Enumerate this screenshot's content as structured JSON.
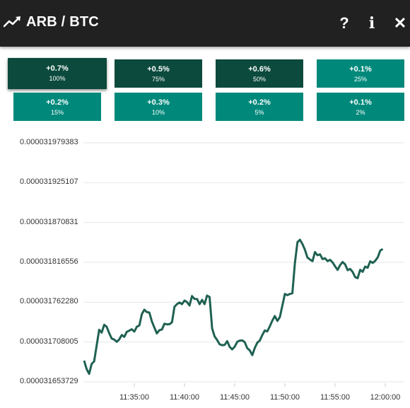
{
  "header": {
    "title": "ARB / BTC",
    "help_label": "?",
    "info_label": "i",
    "close_label": "✕",
    "icons": [
      "trending-up-icon",
      "help-icon",
      "info-icon",
      "close-icon"
    ]
  },
  "tiles": [
    {
      "pct": "+0.7%",
      "sub": "100%",
      "color": "#0b4a3c"
    },
    {
      "pct": "+0.5%",
      "sub": "75%",
      "color": "#0b4a3c"
    },
    {
      "pct": "+0.6%",
      "sub": "50%",
      "color": "#0b4a3c"
    },
    {
      "pct": "+0.1%",
      "sub": "25%",
      "color": "#00897b"
    },
    {
      "pct": "+0.2%",
      "sub": "15%",
      "color": "#00897b"
    },
    {
      "pct": "+0.3%",
      "sub": "10%",
      "color": "#00897b"
    },
    {
      "pct": "+0.2%",
      "sub": "5%",
      "color": "#00897b"
    },
    {
      "pct": "+0.1%",
      "sub": "2%",
      "color": "#00897b"
    }
  ],
  "chart_data": {
    "type": "line",
    "line_color": "#1f6152",
    "grid": true,
    "ylim": [
      3.16537e-05,
      3.19794e-05
    ],
    "y_ticks": [
      "0.000031979383",
      "0.000031925107",
      "0.000031870831",
      "0.000031816556",
      "0.000031762280",
      "0.000031708005",
      "0.000031653729"
    ],
    "x_ticks": [
      "11:35:00",
      "11:40:00",
      "11:45:00",
      "11:50:00",
      "11:55:00",
      "12:00:00"
    ],
    "x_tick_minutes": [
      35,
      40,
      45,
      50,
      55,
      60
    ],
    "x_unit": "minutes past 11:00",
    "points": [
      [
        30.0,
        3.16826e-05
      ],
      [
        30.25,
        3.16712e-05
      ],
      [
        30.5,
        3.16646e-05
      ],
      [
        30.75,
        3.16783e-05
      ],
      [
        31.0,
        3.16816e-05
      ],
      [
        31.25,
        3.17036e-05
      ],
      [
        31.5,
        3.17247e-05
      ],
      [
        31.75,
        3.17208e-05
      ],
      [
        32.0,
        3.17315e-05
      ],
      [
        32.25,
        3.17287e-05
      ],
      [
        32.5,
        3.172e-05
      ],
      [
        32.75,
        3.17126e-05
      ],
      [
        33.0,
        3.17113e-05
      ],
      [
        33.25,
        3.17082e-05
      ],
      [
        33.5,
        3.17115e-05
      ],
      [
        33.75,
        3.17176e-05
      ],
      [
        34.0,
        3.1715e-05
      ],
      [
        34.25,
        3.17218e-05
      ],
      [
        34.5,
        3.17235e-05
      ],
      [
        34.75,
        3.17254e-05
      ],
      [
        35.0,
        3.17222e-05
      ],
      [
        35.25,
        3.17288e-05
      ],
      [
        35.5,
        3.17305e-05
      ],
      [
        35.75,
        3.17461e-05
      ],
      [
        36.0,
        3.1752e-05
      ],
      [
        36.25,
        3.17487e-05
      ],
      [
        36.5,
        3.17481e-05
      ],
      [
        36.75,
        3.17362e-05
      ],
      [
        37.0,
        3.17276e-05
      ],
      [
        37.25,
        3.17197e-05
      ],
      [
        37.5,
        3.17241e-05
      ],
      [
        37.75,
        3.1725e-05
      ],
      [
        38.0,
        3.17329e-05
      ],
      [
        38.25,
        3.1732e-05
      ],
      [
        38.5,
        3.17322e-05
      ],
      [
        38.75,
        3.17348e-05
      ],
      [
        39.0,
        3.17559e-05
      ],
      [
        39.25,
        3.17596e-05
      ],
      [
        39.5,
        3.17618e-05
      ],
      [
        39.75,
        3.17596e-05
      ],
      [
        40.0,
        3.17644e-05
      ],
      [
        40.25,
        3.17624e-05
      ],
      [
        40.5,
        3.17578e-05
      ],
      [
        40.75,
        3.17706e-05
      ],
      [
        41.0,
        3.17667e-05
      ],
      [
        41.25,
        3.17665e-05
      ],
      [
        41.5,
        3.17596e-05
      ],
      [
        41.75,
        3.17654e-05
      ],
      [
        42.0,
        3.17596e-05
      ],
      [
        42.25,
        3.17713e-05
      ],
      [
        42.5,
        3.17693e-05
      ],
      [
        42.75,
        3.17265e-05
      ],
      [
        43.0,
        3.17156e-05
      ],
      [
        43.25,
        3.17108e-05
      ],
      [
        43.5,
        3.17049e-05
      ],
      [
        43.75,
        3.17036e-05
      ],
      [
        44.0,
        3.1704e-05
      ],
      [
        44.25,
        3.17091e-05
      ],
      [
        44.5,
        3.17014e-05
      ],
      [
        44.75,
        3.16979e-05
      ],
      [
        45.0,
        3.17016e-05
      ],
      [
        45.25,
        3.17082e-05
      ],
      [
        45.5,
        3.17099e-05
      ],
      [
        45.75,
        3.17102e-05
      ],
      [
        46.0,
        3.17078e-05
      ],
      [
        46.25,
        3.16996e-05
      ],
      [
        46.5,
        3.16966e-05
      ],
      [
        46.75,
        3.16901e-05
      ],
      [
        47.0,
        3.16999e-05
      ],
      [
        47.25,
        3.17069e-05
      ],
      [
        47.5,
        3.171e-05
      ],
      [
        47.75,
        3.17176e-05
      ],
      [
        48.0,
        3.17237e-05
      ],
      [
        48.25,
        3.17224e-05
      ],
      [
        48.5,
        3.17294e-05
      ],
      [
        48.75,
        3.17372e-05
      ],
      [
        49.0,
        3.17434e-05
      ],
      [
        49.25,
        3.17368e-05
      ],
      [
        49.5,
        3.1742e-05
      ],
      [
        49.75,
        3.17574e-05
      ],
      [
        50.0,
        3.17735e-05
      ],
      [
        50.25,
        3.17718e-05
      ],
      [
        50.5,
        3.17735e-05
      ],
      [
        50.75,
        3.17744e-05
      ],
      [
        51.0,
        3.18158e-05
      ],
      [
        51.25,
        3.1844e-05
      ],
      [
        51.5,
        3.18473e-05
      ],
      [
        51.75,
        3.18414e-05
      ],
      [
        52.0,
        3.18336e-05
      ],
      [
        52.25,
        3.18231e-05
      ],
      [
        52.5,
        3.18204e-05
      ],
      [
        52.75,
        3.18182e-05
      ],
      [
        53.0,
        3.18306e-05
      ],
      [
        53.25,
        3.18262e-05
      ],
      [
        53.5,
        3.18274e-05
      ],
      [
        53.75,
        3.1821e-05
      ],
      [
        54.0,
        3.18221e-05
      ],
      [
        54.25,
        3.18182e-05
      ],
      [
        54.5,
        3.182e-05
      ],
      [
        54.75,
        3.18166e-05
      ],
      [
        55.0,
        3.18112e-05
      ],
      [
        55.25,
        3.18062e-05
      ],
      [
        55.5,
        3.18127e-05
      ],
      [
        55.75,
        3.1817e-05
      ],
      [
        56.0,
        3.18138e-05
      ],
      [
        56.25,
        3.18059e-05
      ],
      [
        56.5,
        3.18076e-05
      ],
      [
        56.75,
        3.18034e-05
      ],
      [
        57.0,
        3.17964e-05
      ],
      [
        57.25,
        3.17949e-05
      ],
      [
        57.5,
        3.18063e-05
      ],
      [
        57.75,
        3.18036e-05
      ],
      [
        58.0,
        3.18108e-05
      ],
      [
        58.25,
        3.18091e-05
      ],
      [
        58.5,
        3.1818e-05
      ],
      [
        58.75,
        3.18158e-05
      ],
      [
        59.0,
        3.18187e-05
      ],
      [
        59.25,
        3.18234e-05
      ],
      [
        59.5,
        3.18325e-05
      ],
      [
        59.75,
        3.18348e-05
      ]
    ]
  }
}
